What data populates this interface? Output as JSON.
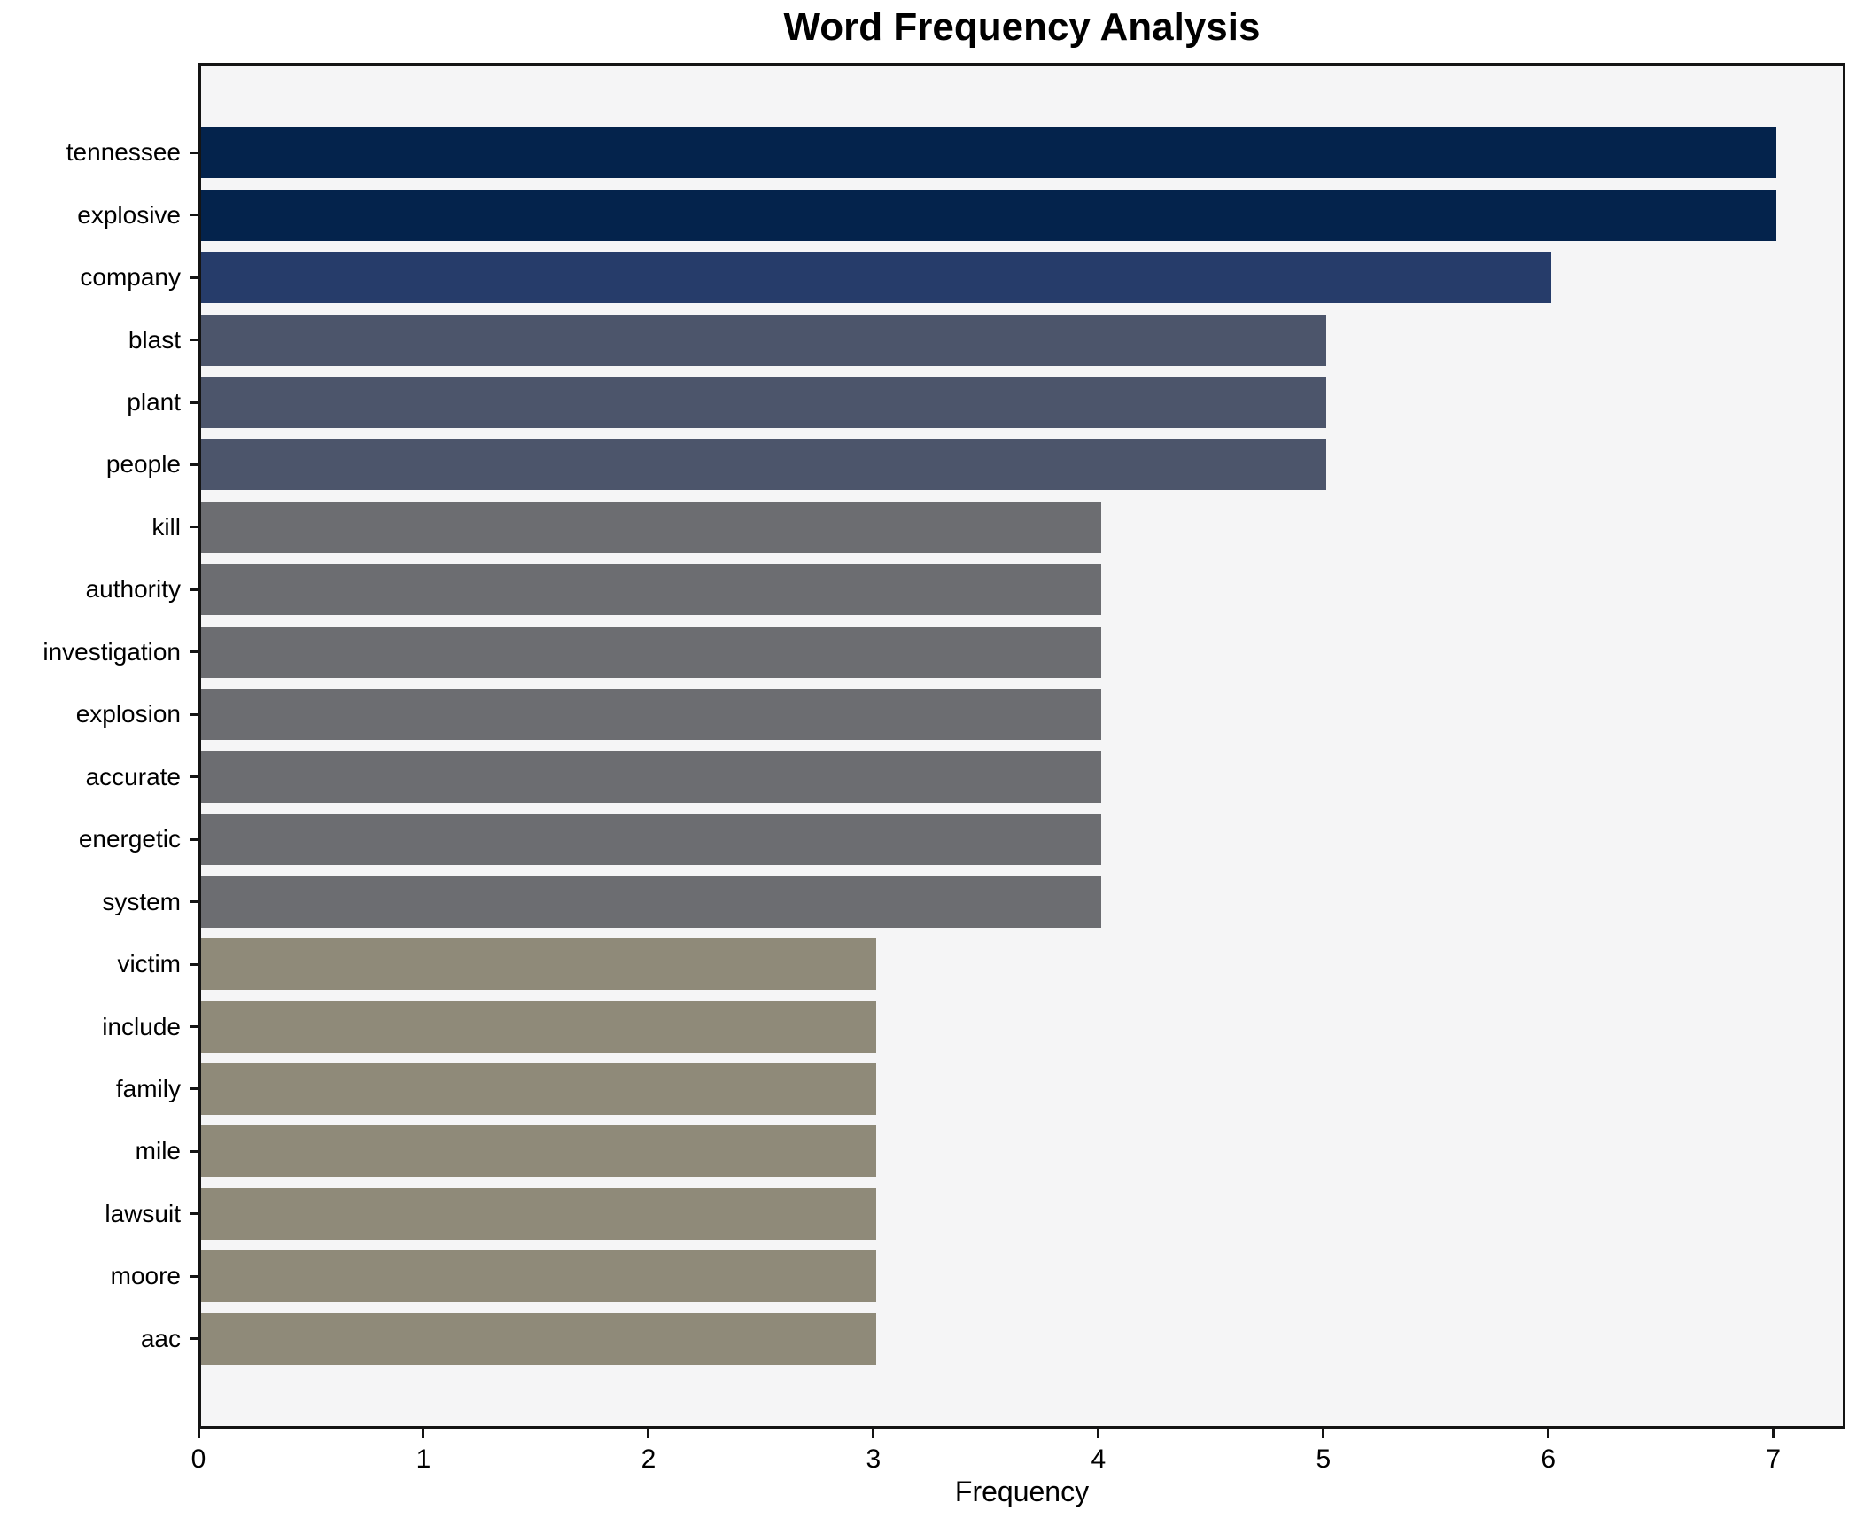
{
  "chart_data": {
    "type": "bar",
    "orientation": "horizontal",
    "title": "Word Frequency Analysis",
    "xlabel": "Frequency",
    "ylabel": "",
    "categories": [
      "tennessee",
      "explosive",
      "company",
      "blast",
      "plant",
      "people",
      "kill",
      "authority",
      "investigation",
      "explosion",
      "accurate",
      "energetic",
      "system",
      "victim",
      "include",
      "family",
      "mile",
      "lawsuit",
      "moore",
      "aac"
    ],
    "values": [
      7,
      7,
      6,
      5,
      5,
      5,
      4,
      4,
      4,
      4,
      4,
      4,
      4,
      3,
      3,
      3,
      3,
      3,
      3,
      3
    ],
    "xticks": [
      0,
      1,
      2,
      3,
      4,
      5,
      6,
      7
    ],
    "xlim": [
      0,
      7.32
    ],
    "grid": false,
    "legend": null,
    "colors_by_value": {
      "7": "#04234c",
      "6": "#263c6a",
      "5": "#4c556b",
      "4": "#6c6d71",
      "3": "#8f8a79"
    },
    "plot_background": "#f5f5f6",
    "spine_color": "#141414",
    "text_color": "#000000"
  }
}
